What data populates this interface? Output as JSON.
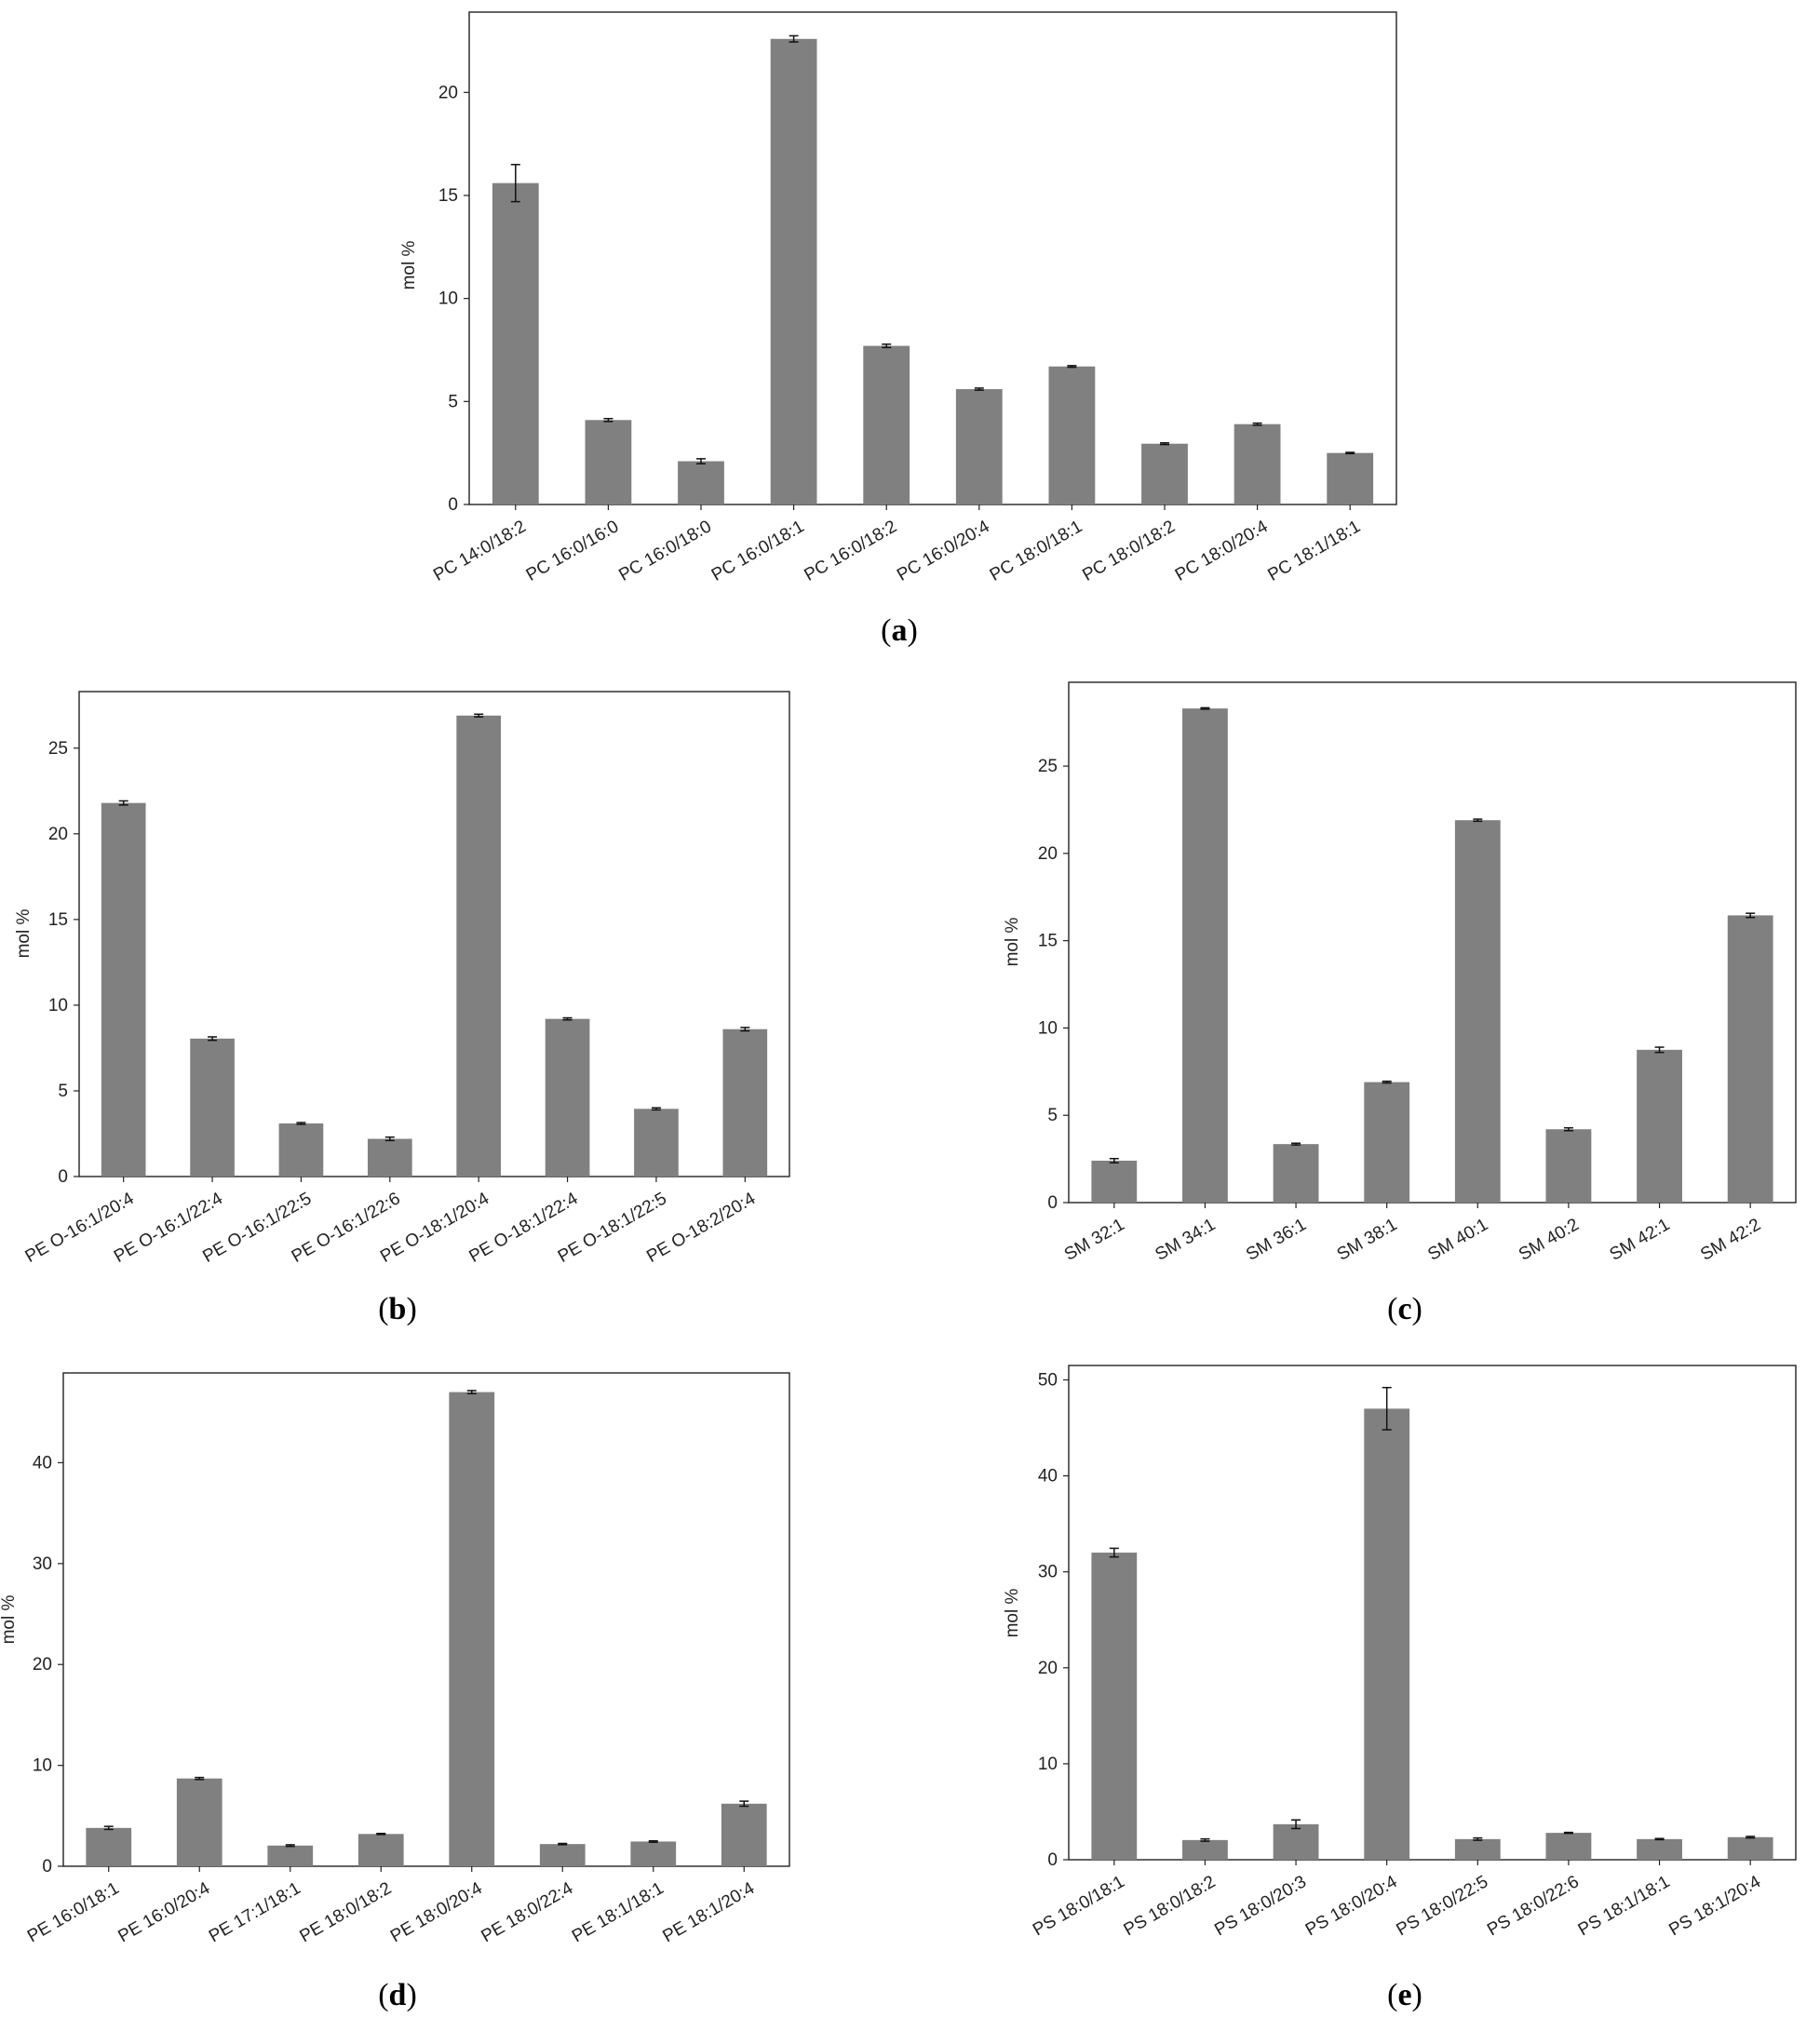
{
  "colors": {
    "bar": "#808080",
    "axis": "#222222",
    "error_bar": "#111111",
    "background": "#ffffff"
  },
  "chart_data": [
    {
      "id": "a",
      "panel_label": "a",
      "type": "bar",
      "ylabel": "mol %",
      "ylim": [
        0,
        23.9
      ],
      "yticks": [
        0,
        5,
        10,
        15,
        20
      ],
      "grid": false,
      "categories": [
        "PC 14:0/18:2",
        "PC 16:0/16:0",
        "PC 16:0/18:0",
        "PC 16:0/18:1",
        "PC 16:0/18:2",
        "PC 16:0/20:4",
        "PC 18:0/18:1",
        "PC 18:0/18:2",
        "PC 18:0/20:4",
        "PC 18:1/18:1"
      ],
      "values": [
        15.6,
        4.1,
        2.1,
        22.6,
        7.7,
        5.6,
        6.7,
        2.95,
        3.9,
        2.5
      ],
      "errors": [
        0.9,
        0.07,
        0.12,
        0.15,
        0.08,
        0.05,
        0.04,
        0.04,
        0.05,
        0.03
      ]
    },
    {
      "id": "b",
      "panel_label": "b",
      "type": "bar",
      "ylabel": "mol %",
      "ylim": [
        0,
        28.3
      ],
      "yticks": [
        0,
        5,
        10,
        15,
        20,
        25
      ],
      "grid": false,
      "categories": [
        "PE O-16:1/20:4",
        "PE O-16:1/22:4",
        "PE O-16:1/22:5",
        "PE O-16:1/22:6",
        "PE O-18:1/20:4",
        "PE O-18:1/22:4",
        "PE O-18:1/22:5",
        "PE O-18:2/20:4"
      ],
      "values": [
        21.8,
        8.05,
        3.1,
        2.2,
        26.9,
        9.2,
        3.95,
        8.6
      ],
      "errors": [
        0.12,
        0.1,
        0.05,
        0.1,
        0.08,
        0.06,
        0.06,
        0.1
      ]
    },
    {
      "id": "c",
      "panel_label": "c",
      "type": "bar",
      "ylabel": "mol %",
      "ylim": [
        0,
        29.8
      ],
      "yticks": [
        0,
        5,
        10,
        15,
        20,
        25
      ],
      "grid": false,
      "categories": [
        "SM 32:1",
        "SM 34:1",
        "SM 36:1",
        "SM 38:1",
        "SM 40:1",
        "SM 40:2",
        "SM 42:1",
        "SM 42:2"
      ],
      "values": [
        2.4,
        28.3,
        3.35,
        6.9,
        21.9,
        4.2,
        8.75,
        16.45
      ],
      "errors": [
        0.12,
        0.04,
        0.05,
        0.05,
        0.06,
        0.08,
        0.15,
        0.12
      ]
    },
    {
      "id": "d",
      "panel_label": "d",
      "type": "bar",
      "ylabel": "mol %",
      "ylim": [
        0,
        48.9
      ],
      "yticks": [
        0,
        10,
        20,
        30,
        40
      ],
      "grid": false,
      "categories": [
        "PE 16:0/18:1",
        "PE 16:0/20:4",
        "PE 17:1/18:1",
        "PE 18:0/18:2",
        "PE 18:0/20:4",
        "PE 18:0/22:4",
        "PE 18:1/18:1",
        "PE 18:1/20:4"
      ],
      "values": [
        3.8,
        8.7,
        2.05,
        3.2,
        47.0,
        2.2,
        2.45,
        6.2
      ],
      "errors": [
        0.15,
        0.1,
        0.08,
        0.05,
        0.15,
        0.06,
        0.07,
        0.25
      ]
    },
    {
      "id": "e",
      "panel_label": "e",
      "type": "bar",
      "ylabel": "mol %",
      "ylim": [
        0,
        51.5
      ],
      "yticks": [
        0,
        10,
        20,
        30,
        40,
        50
      ],
      "grid": false,
      "categories": [
        "PS 18:0/18:1",
        "PS 18:0/18:2",
        "PS 18:0/20:3",
        "PS 18:0/20:4",
        "PS 18:0/22:5",
        "PS 18:0/22:6",
        "PS 18:1/18:1",
        "PS 18:1/20:4"
      ],
      "values": [
        32.0,
        2.05,
        3.7,
        47.0,
        2.15,
        2.8,
        2.15,
        2.35
      ],
      "errors": [
        0.45,
        0.12,
        0.45,
        2.2,
        0.12,
        0.05,
        0.06,
        0.08
      ]
    }
  ]
}
